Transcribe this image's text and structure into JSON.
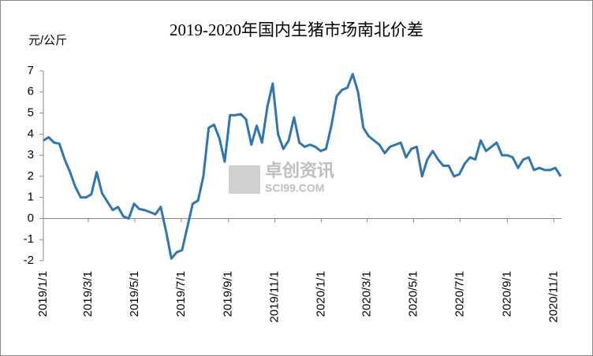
{
  "chart_data": {
    "type": "line",
    "title": "2019-2020年国内生猪市场南北价差",
    "y_label": "元/公斤",
    "watermark": [
      "卓创资讯",
      "SCI99.COM"
    ],
    "x": [
      "2019/1/1",
      "2019/1/8",
      "2019/1/15",
      "2019/1/22",
      "2019/1/29",
      "2019/2/5",
      "2019/2/12",
      "2019/2/19",
      "2019/2/26",
      "2019/3/5",
      "2019/3/12",
      "2019/3/19",
      "2019/3/26",
      "2019/4/2",
      "2019/4/9",
      "2019/4/16",
      "2019/4/23",
      "2019/4/30",
      "2019/5/7",
      "2019/5/14",
      "2019/5/21",
      "2019/5/28",
      "2019/6/4",
      "2019/6/11",
      "2019/6/18",
      "2019/6/25",
      "2019/7/2",
      "2019/7/9",
      "2019/7/16",
      "2019/7/23",
      "2019/7/30",
      "2019/8/6",
      "2019/8/13",
      "2019/8/20",
      "2019/8/27",
      "2019/9/3",
      "2019/9/10",
      "2019/9/17",
      "2019/9/24",
      "2019/10/1",
      "2019/10/8",
      "2019/10/15",
      "2019/10/22",
      "2019/10/29",
      "2019/11/5",
      "2019/11/12",
      "2019/11/19",
      "2019/11/26",
      "2019/12/3",
      "2019/12/10",
      "2019/12/17",
      "2019/12/24",
      "2019/12/31",
      "2020/1/7",
      "2020/1/14",
      "2020/1/21",
      "2020/1/28",
      "2020/2/4",
      "2020/2/11",
      "2020/2/18",
      "2020/2/25",
      "2020/3/3",
      "2020/3/10",
      "2020/3/17",
      "2020/3/24",
      "2020/3/31",
      "2020/4/7",
      "2020/4/14",
      "2020/4/21",
      "2020/4/28",
      "2020/5/5",
      "2020/5/12",
      "2020/5/19",
      "2020/5/26",
      "2020/6/2",
      "2020/6/9",
      "2020/6/16",
      "2020/6/23",
      "2020/6/30",
      "2020/7/7",
      "2020/7/14",
      "2020/7/21",
      "2020/7/28",
      "2020/8/4",
      "2020/8/11",
      "2020/8/18",
      "2020/8/25",
      "2020/9/1",
      "2020/9/8",
      "2020/9/15",
      "2020/9/22",
      "2020/9/29",
      "2020/10/6",
      "2020/10/13",
      "2020/10/20",
      "2020/10/27",
      "2020/11/3",
      "2020/11/10"
    ],
    "series": [
      {
        "color": "#2e75b6",
        "values": [
          3.7,
          3.85,
          3.6,
          3.55,
          2.8,
          2.2,
          1.5,
          1.0,
          1.0,
          1.15,
          2.2,
          1.2,
          0.8,
          0.4,
          0.55,
          0.1,
          0.0,
          0.7,
          0.45,
          0.4,
          0.3,
          0.2,
          0.55,
          -0.6,
          -1.9,
          -1.6,
          -1.5,
          -0.4,
          0.7,
          0.85,
          2.0,
          4.3,
          4.45,
          3.8,
          2.7,
          4.9,
          4.9,
          4.95,
          4.7,
          3.5,
          4.4,
          3.6,
          5.3,
          6.4,
          4.0,
          3.3,
          3.7,
          4.8,
          3.6,
          3.4,
          3.5,
          3.4,
          3.2,
          3.3,
          4.4,
          5.8,
          6.1,
          6.2,
          6.85,
          6.0,
          4.3,
          3.9,
          3.7,
          3.5,
          3.1,
          3.4,
          3.5,
          3.6,
          2.9,
          3.3,
          3.4,
          2.0,
          2.8,
          3.2,
          2.8,
          2.5,
          2.5,
          2.0,
          2.1,
          2.6,
          2.9,
          2.8,
          3.7,
          3.2,
          3.4,
          3.6,
          3.0,
          3.0,
          2.9,
          2.4,
          2.8,
          2.9,
          2.3,
          2.4,
          2.3,
          2.3,
          2.4,
          2.0
        ]
      }
    ],
    "xlim": [
      "2019/1/1",
      "2020/11/11"
    ],
    "xticks": [
      "2019/1/1",
      "2019/3/1",
      "2019/5/1",
      "2019/7/1",
      "2019/9/1",
      "2019/11/1",
      "2020/1/1",
      "2020/3/1",
      "2020/5/1",
      "2020/7/1",
      "2020/9/1",
      "2020/11/1"
    ],
    "ylim": [
      -2,
      7
    ],
    "yticks": [
      -2,
      -1,
      0,
      1,
      2,
      3,
      4,
      5,
      6,
      7
    ],
    "grid": false
  }
}
